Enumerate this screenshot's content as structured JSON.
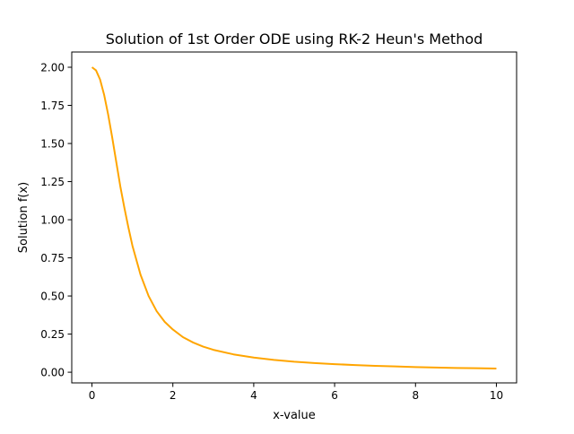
{
  "chart_data": {
    "type": "line",
    "title": "Solution of 1st Order ODE using RK-2 Heun's Method",
    "xlabel": "x-value",
    "ylabel": "Solution f(x)",
    "xlim": [
      -0.5,
      10.5
    ],
    "ylim": [
      -0.07,
      2.1
    ],
    "xticks": [
      0,
      2,
      4,
      6,
      8,
      10
    ],
    "xtick_labels": [
      "0",
      "2",
      "4",
      "6",
      "8",
      "10"
    ],
    "yticks": [
      0,
      0.25,
      0.5,
      0.75,
      1.0,
      1.25,
      1.5,
      1.75,
      2.0
    ],
    "ytick_labels": [
      "0.00",
      "0.25",
      "0.50",
      "0.75",
      "1.00",
      "1.25",
      "1.50",
      "1.75",
      "2.00"
    ],
    "grid": false,
    "series": [
      {
        "color": "#ffa500",
        "x": [
          0,
          0.1,
          0.2,
          0.3,
          0.4,
          0.5,
          0.6,
          0.7,
          0.8,
          0.9,
          1.0,
          1.2,
          1.4,
          1.6,
          1.8,
          2.0,
          2.25,
          2.5,
          2.75,
          3.0,
          3.5,
          4.0,
          4.5,
          5.0,
          5.5,
          6.0,
          6.5,
          7.0,
          7.5,
          8.0,
          8.5,
          9.0,
          9.5,
          10.0
        ],
        "y": [
          2.0,
          1.98,
          1.92,
          1.82,
          1.69,
          1.54,
          1.38,
          1.22,
          1.08,
          0.95,
          0.83,
          0.64,
          0.5,
          0.4,
          0.33,
          0.28,
          0.23,
          0.195,
          0.168,
          0.147,
          0.117,
          0.096,
          0.081,
          0.069,
          0.06,
          0.053,
          0.047,
          0.042,
          0.038,
          0.034,
          0.031,
          0.028,
          0.026,
          0.024
        ]
      }
    ]
  }
}
